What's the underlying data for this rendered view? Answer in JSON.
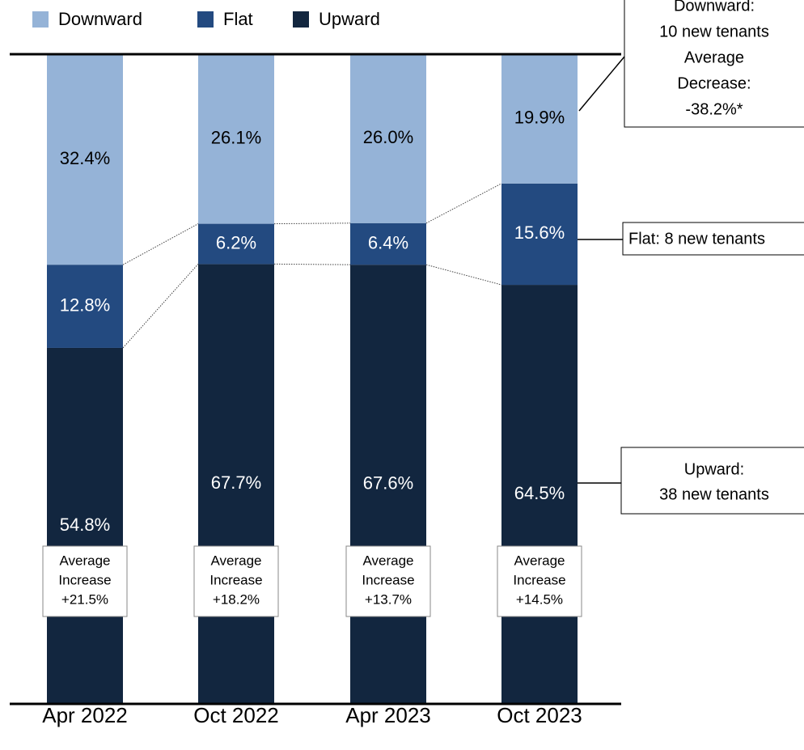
{
  "chart_data": {
    "type": "bar",
    "stacked": true,
    "categories": [
      "Apr 2022",
      "Oct 2022",
      "Apr 2023",
      "Oct 2023"
    ],
    "series": [
      {
        "name": "Downward",
        "color": "#95b3d7",
        "values": [
          32.4,
          26.1,
          26.0,
          19.9
        ],
        "value_labels": [
          "32.4%",
          "26.1%",
          "26.0%",
          "19.9%"
        ]
      },
      {
        "name": "Flat",
        "color": "#234a80",
        "values": [
          12.8,
          6.2,
          6.4,
          15.6
        ],
        "value_labels": [
          "12.8%",
          "6.2%",
          "6.4%",
          "15.6%"
        ]
      },
      {
        "name": "Upward",
        "color": "#12263f",
        "values": [
          54.8,
          67.7,
          67.6,
          64.5
        ],
        "value_labels": [
          "54.8%",
          "67.7%",
          "67.6%",
          "64.5%"
        ]
      }
    ],
    "ylim": [
      0,
      100
    ],
    "average_boxes": [
      [
        "Average",
        "Increase",
        "+21.5%"
      ],
      [
        "Average",
        "Increase",
        "+18.2%"
      ],
      [
        "Average",
        "Increase",
        "+13.7%"
      ],
      [
        "Average",
        "Increase",
        "+14.5%"
      ]
    ],
    "callouts": [
      [
        "Downward:",
        "10 new tenants",
        "Average",
        "Decrease:",
        "-38.2%*"
      ],
      [
        "Flat: 8 new tenants"
      ],
      [
        "Upward:",
        "38 new tenants"
      ]
    ]
  }
}
